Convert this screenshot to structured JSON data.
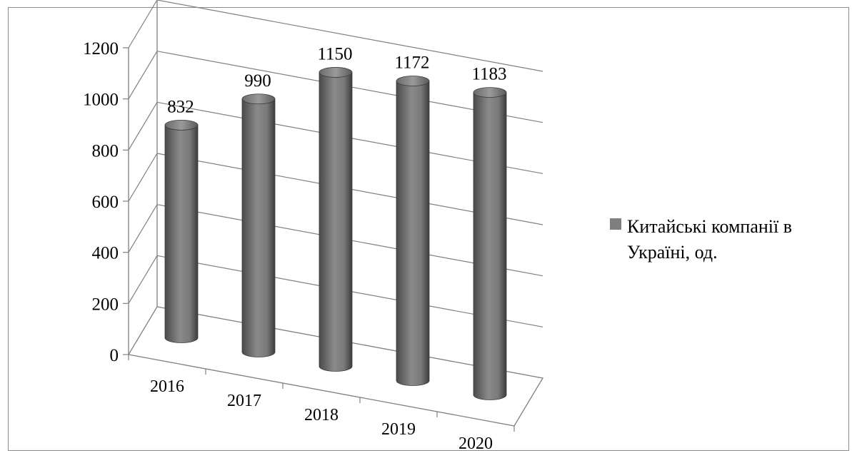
{
  "chart_data": {
    "type": "bar",
    "style": "3d-cylinder",
    "categories": [
      "2016",
      "2017",
      "2018",
      "2019",
      "2020"
    ],
    "series": [
      {
        "name": "Китайські компанії в Україні, од.",
        "values": [
          832,
          990,
          1150,
          1172,
          1183
        ],
        "color": "#7f7f7f"
      }
    ],
    "y_ticks": [
      "0",
      "200",
      "400",
      "600",
      "800",
      "1000",
      "1200"
    ],
    "ylim": [
      0,
      1200
    ],
    "grid": true,
    "legend_position": "right",
    "legend": {
      "line1": "Китайські компанії в",
      "line2": "Україні, од."
    },
    "colors": {
      "bar": "#7f7f7f",
      "grid": "#808080",
      "axis": "#808080"
    }
  }
}
